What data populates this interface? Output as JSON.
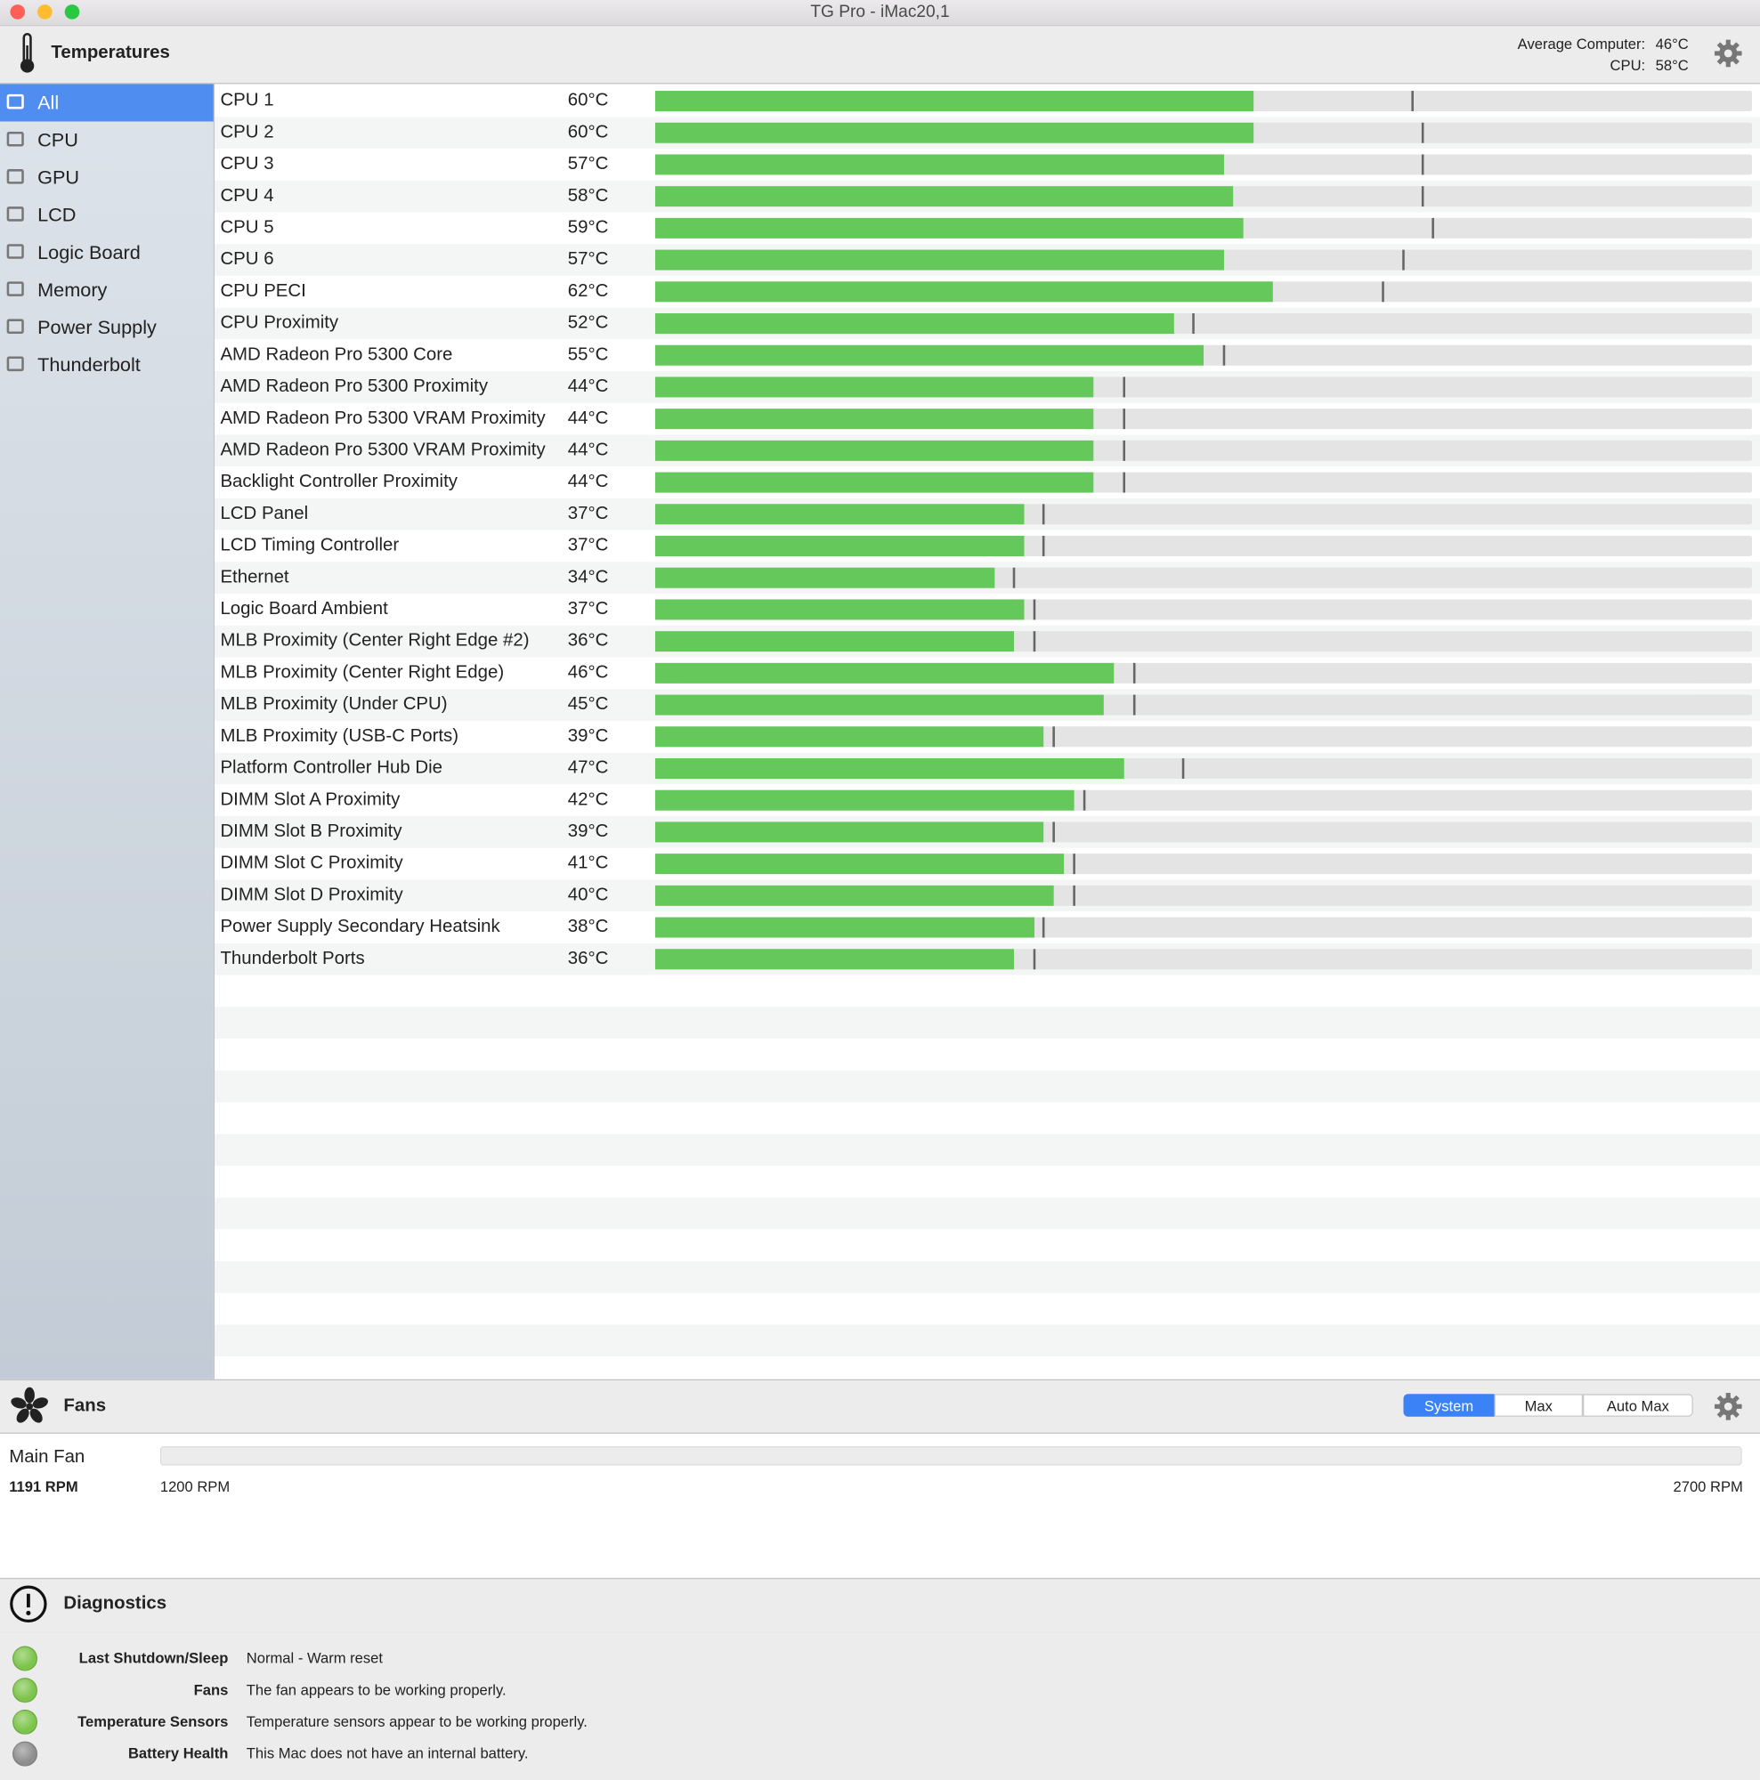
{
  "window_title": "TG Pro - iMac20,1",
  "temperatures": {
    "title": "Temperatures",
    "average_label": "Average Computer:",
    "average": "46°C",
    "cpu_label": "CPU:",
    "cpu": "58°C",
    "xlim": [
      0,
      110
    ],
    "rows": [
      {
        "name": "CPU 1",
        "value": 60,
        "label": "60°C",
        "max": 76
      },
      {
        "name": "CPU 2",
        "value": 60,
        "label": "60°C",
        "max": 77
      },
      {
        "name": "CPU 3",
        "value": 57,
        "label": "57°C",
        "max": 77
      },
      {
        "name": "CPU 4",
        "value": 58,
        "label": "58°C",
        "max": 77
      },
      {
        "name": "CPU 5",
        "value": 59,
        "label": "59°C",
        "max": 78
      },
      {
        "name": "CPU 6",
        "value": 57,
        "label": "57°C",
        "max": 75
      },
      {
        "name": "CPU PECI",
        "value": 62,
        "label": "62°C",
        "max": 73
      },
      {
        "name": "CPU Proximity",
        "value": 52,
        "label": "52°C",
        "max": 54
      },
      {
        "name": "AMD Radeon Pro 5300 Core",
        "value": 55,
        "label": "55°C",
        "max": 57
      },
      {
        "name": "AMD Radeon Pro 5300 Proximity",
        "value": 44,
        "label": "44°C",
        "max": 47
      },
      {
        "name": "AMD Radeon Pro 5300 VRAM Proximity",
        "value": 44,
        "label": "44°C",
        "max": 47
      },
      {
        "name": "AMD Radeon Pro 5300 VRAM Proximity",
        "value": 44,
        "label": "44°C",
        "max": 47
      },
      {
        "name": "Backlight Controller Proximity",
        "value": 44,
        "label": "44°C",
        "max": 47
      },
      {
        "name": "LCD Panel",
        "value": 37,
        "label": "37°C",
        "max": 39
      },
      {
        "name": "LCD Timing Controller",
        "value": 37,
        "label": "37°C",
        "max": 39
      },
      {
        "name": "Ethernet",
        "value": 34,
        "label": "34°C",
        "max": 36
      },
      {
        "name": "Logic Board Ambient",
        "value": 37,
        "label": "37°C",
        "max": 38
      },
      {
        "name": "MLB Proximity (Center Right Edge #2)",
        "value": 36,
        "label": "36°C",
        "max": 38
      },
      {
        "name": "MLB Proximity (Center Right Edge)",
        "value": 46,
        "label": "46°C",
        "max": 48
      },
      {
        "name": "MLB Proximity (Under CPU)",
        "value": 45,
        "label": "45°C",
        "max": 48
      },
      {
        "name": "MLB Proximity (USB-C Ports)",
        "value": 39,
        "label": "39°C",
        "max": 40
      },
      {
        "name": "Platform Controller Hub Die",
        "value": 47,
        "label": "47°C",
        "max": 53
      },
      {
        "name": "DIMM Slot A Proximity",
        "value": 42,
        "label": "42°C",
        "max": 43
      },
      {
        "name": "DIMM Slot B Proximity",
        "value": 39,
        "label": "39°C",
        "max": 40
      },
      {
        "name": "DIMM Slot C Proximity",
        "value": 41,
        "label": "41°C",
        "max": 42
      },
      {
        "name": "DIMM Slot D Proximity",
        "value": 40,
        "label": "40°C",
        "max": 42
      },
      {
        "name": "Power Supply Secondary Heatsink",
        "value": 38,
        "label": "38°C",
        "max": 39
      },
      {
        "name": "Thunderbolt Ports",
        "value": 36,
        "label": "36°C",
        "max": 38
      }
    ]
  },
  "sidebar": [
    "All",
    "CPU",
    "GPU",
    "LCD",
    "Logic Board",
    "Memory",
    "Power Supply",
    "Thunderbolt"
  ],
  "fans": {
    "title": "Fans",
    "modes": [
      "System",
      "Max",
      "Auto Max"
    ],
    "fan_name": "Main Fan",
    "speed": "1191 RPM",
    "min": "1200 RPM",
    "max": "2700 RPM"
  },
  "diagnostics": {
    "title": "Diagnostics",
    "items": [
      {
        "name": "Last Shutdown/Sleep",
        "text": "Normal - Warm reset",
        "status": "#7cc44a"
      },
      {
        "name": "Fans",
        "text": "The fan appears to be working properly.",
        "status": "#7cc44a"
      },
      {
        "name": "Temperature Sensors",
        "text": "Temperature sensors appear to be working properly.",
        "status": "#7cc44a"
      },
      {
        "name": "Battery Health",
        "text": "This Mac does not have an internal battery.",
        "status": "#8e8e8e"
      }
    ]
  }
}
